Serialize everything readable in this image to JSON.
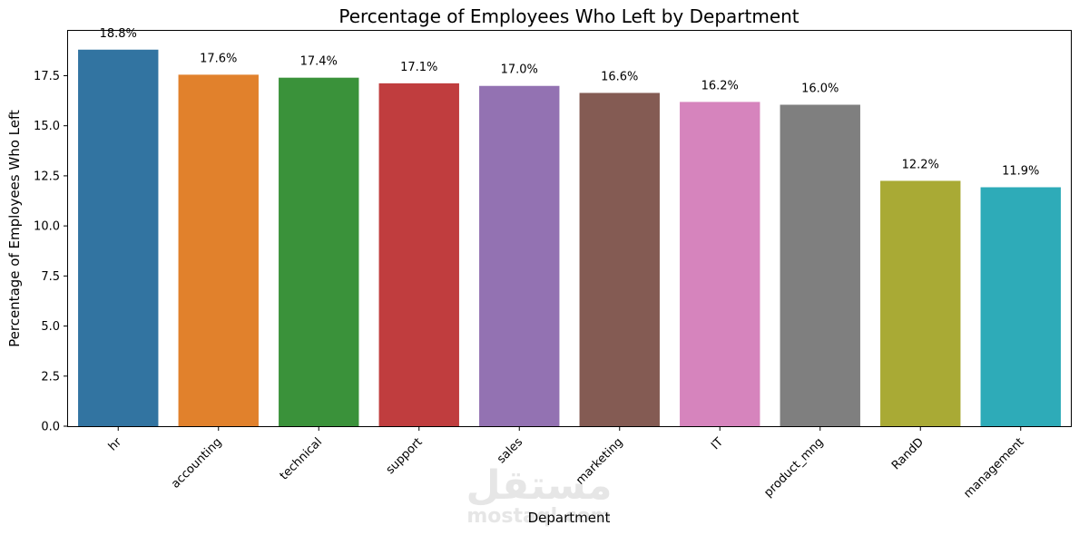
{
  "chart_data": {
    "type": "bar",
    "title": "Percentage of Employees Who Left by Department",
    "xlabel": "Department",
    "ylabel": "Percentage of Employees Who Left",
    "categories": [
      "hr",
      "accounting",
      "technical",
      "support",
      "sales",
      "marketing",
      "IT",
      "product_mng",
      "RandD",
      "management"
    ],
    "values": [
      18.8,
      17.55,
      17.4,
      17.12,
      16.99,
      16.64,
      16.19,
      16.05,
      12.25,
      11.93
    ],
    "data_labels": [
      "18.8%",
      "17.6%",
      "17.4%",
      "17.1%",
      "17.0%",
      "16.6%",
      "16.2%",
      "16.0%",
      "12.2%",
      "11.9%"
    ],
    "colors": [
      "#3274a1",
      "#e1812c",
      "#3a923a",
      "#c03d3e",
      "#9372b2",
      "#845b53",
      "#d684bd",
      "#7f7f7f",
      "#a9aa35",
      "#2eabb8"
    ],
    "ylim": [
      0,
      19.74
    ],
    "yticks": [
      "0.0",
      "2.5",
      "5.0",
      "7.5",
      "10.0",
      "12.5",
      "15.0",
      "17.5"
    ],
    "ytick_values": [
      0,
      2.5,
      5,
      7.5,
      10,
      12.5,
      15,
      17.5
    ],
    "grid": false,
    "legend": "none"
  },
  "watermark": {
    "main": "مستقل",
    "sub": "mostaql.com"
  }
}
